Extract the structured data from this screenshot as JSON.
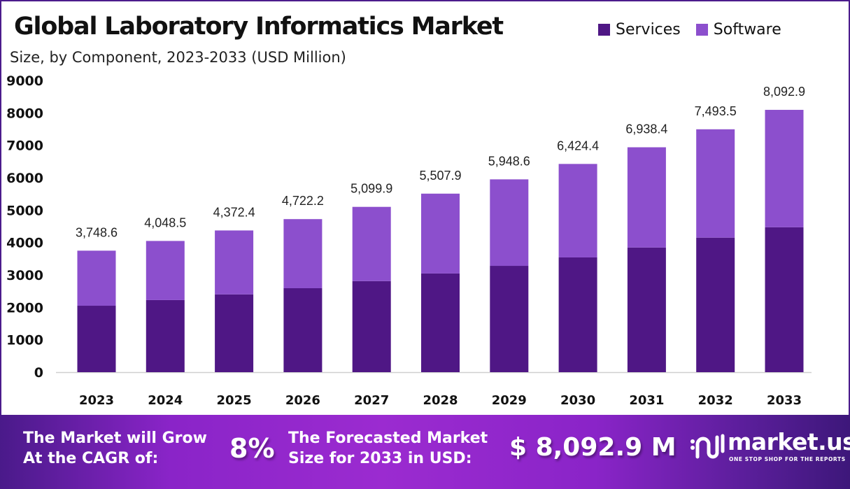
{
  "header": {
    "title": "Global Laboratory Informatics Market",
    "subtitle": "Size, by Component, 2023-2033 (USD Million)"
  },
  "legend": [
    {
      "label": "Services",
      "color": "#4f1785"
    },
    {
      "label": "Software",
      "color": "#8c4fcd"
    }
  ],
  "chart_data": {
    "type": "bar",
    "stacked": true,
    "title": "Global Laboratory Informatics Market",
    "subtitle": "Size, by Component, 2023-2033 (USD Million)",
    "xlabel": "",
    "ylabel": "",
    "categories": [
      "2023",
      "2024",
      "2025",
      "2026",
      "2027",
      "2028",
      "2029",
      "2030",
      "2031",
      "2032",
      "2033"
    ],
    "series": [
      {
        "name": "Services",
        "color": "#4f1785",
        "values": [
          2050,
          2225,
          2400,
          2590,
          2810,
          3045,
          3280,
          3540,
          3845,
          4150,
          4470
        ]
      },
      {
        "name": "Software",
        "color": "#8c4fcd",
        "values": [
          1698.6,
          1823.5,
          1972.4,
          2132.2,
          2289.9,
          2462.9,
          2668.6,
          2884.4,
          3093.4,
          3343.5,
          3622.9
        ]
      }
    ],
    "totals": [
      3748.6,
      4048.5,
      4372.4,
      4722.2,
      5099.9,
      5507.9,
      5948.6,
      6424.4,
      6938.4,
      7493.5,
      8092.9
    ],
    "total_labels": [
      "3,748.6",
      "4,048.5",
      "4,372.4",
      "4,722.2",
      "5,099.9",
      "5,507.9",
      "5,948.6",
      "6,424.4",
      "6,938.4",
      "7,493.5",
      "8,092.9"
    ],
    "yticks": [
      "0",
      "1000",
      "2000",
      "3000",
      "4000",
      "5000",
      "6000",
      "7000",
      "8000",
      "9000"
    ],
    "ylim": [
      0,
      9000
    ],
    "grid": false,
    "legend_position": "top-right"
  },
  "banner": {
    "cagr_line1": "The Market will Grow",
    "cagr_line2": "At the CAGR of:",
    "cagr_value": "8%",
    "forecast_line1": "The Forecasted Market",
    "forecast_line2": "Size for 2033 in USD:",
    "forecast_value": "$ 8,092.9 M",
    "brand_name": "market.us",
    "brand_tagline": "ONE STOP SHOP FOR THE REPORTS"
  }
}
